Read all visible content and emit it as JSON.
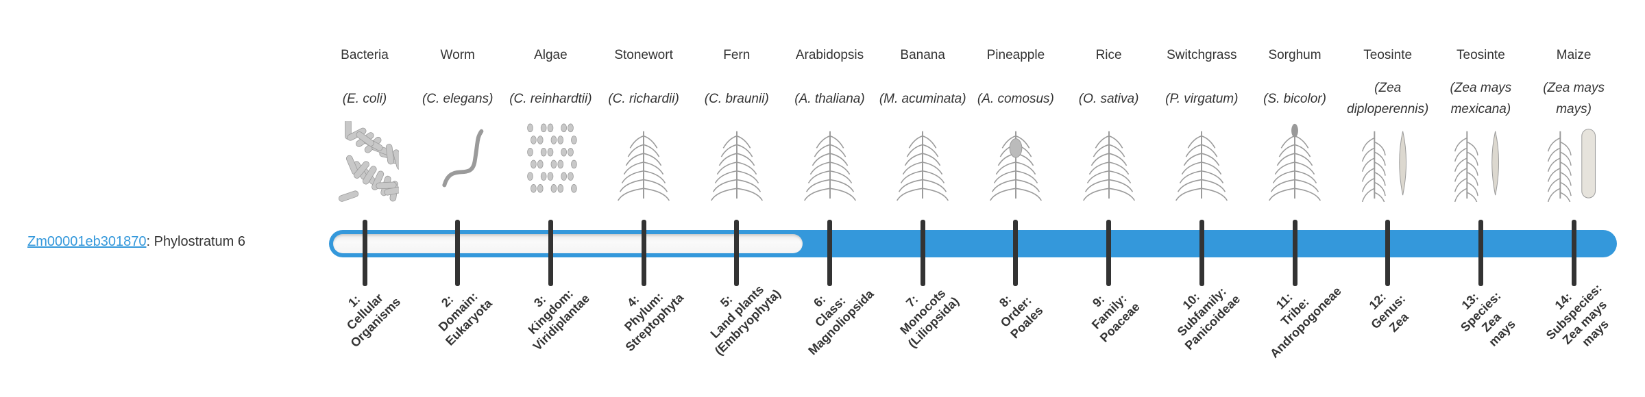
{
  "gene": {
    "id": "Zm00001eb301870",
    "suffix": ": Phylostratum 6"
  },
  "phylostratum": 6,
  "total_strata": 14,
  "colors": {
    "accent": "#3498db",
    "tick": "#333333",
    "text": "#333333"
  },
  "columns": [
    {
      "common": "Bacteria",
      "species": "(E. coli)",
      "icon": "bacteria-icon",
      "stratum": "1:\nCellular\nOrganisms"
    },
    {
      "common": "Worm",
      "species": "(C. elegans)",
      "icon": "worm-icon",
      "stratum": "2:\nDomain:\nEukaryota"
    },
    {
      "common": "Algae",
      "species": "(C. reinhardtii)",
      "icon": "algae-icon",
      "stratum": "3:\nKingdom:\nViridiplantae"
    },
    {
      "common": "Stonewort",
      "species": "(C. richardii)",
      "icon": "stonewort-icon",
      "stratum": "4:\nPhylum:\nStreptophyta"
    },
    {
      "common": "Fern",
      "species": "(C. braunii)",
      "icon": "fern-icon",
      "stratum": "5:\nLand plants\n(Embryophyta)"
    },
    {
      "common": "Arabidopsis",
      "species": "(A. thaliana)",
      "icon": "arabidopsis-icon",
      "stratum": "6:\nClass:\nMagnoliopsida"
    },
    {
      "common": "Banana",
      "species": "(M. acuminata)",
      "icon": "banana-icon",
      "stratum": "7:\nMonocots\n(Liliopsida)"
    },
    {
      "common": "Pineapple",
      "species": "(A. comosus)",
      "icon": "pineapple-icon",
      "stratum": "8:\nOrder:\nPoales"
    },
    {
      "common": "Rice",
      "species": "(O. sativa)",
      "icon": "rice-icon",
      "stratum": "9:\nFamily:\nPoaceae"
    },
    {
      "common": "Switchgrass",
      "species": "(P. virgatum)",
      "icon": "switchgrass-icon",
      "stratum": "10:\nSubfamily:\nPanicoideae"
    },
    {
      "common": "Sorghum",
      "species": "(S. bicolor)",
      "icon": "sorghum-icon",
      "stratum": "11:\nTribe:\nAndropogoneae"
    },
    {
      "common": "Teosinte",
      "species": "(Zea diploperennis)",
      "icon": "teosinte-icon",
      "stratum": "12:\nGenus:\nZea"
    },
    {
      "common": "Teosinte",
      "species": "(Zea mays mexicana)",
      "icon": "teosinte-mexicana-icon",
      "stratum": "13:\nSpecies:\nZea\nmays"
    },
    {
      "common": "Maize",
      "species": "(Zea mays mays)",
      "icon": "maize-icon",
      "stratum": "14:\nSubspecies:\nZea mays\nmays"
    }
  ]
}
